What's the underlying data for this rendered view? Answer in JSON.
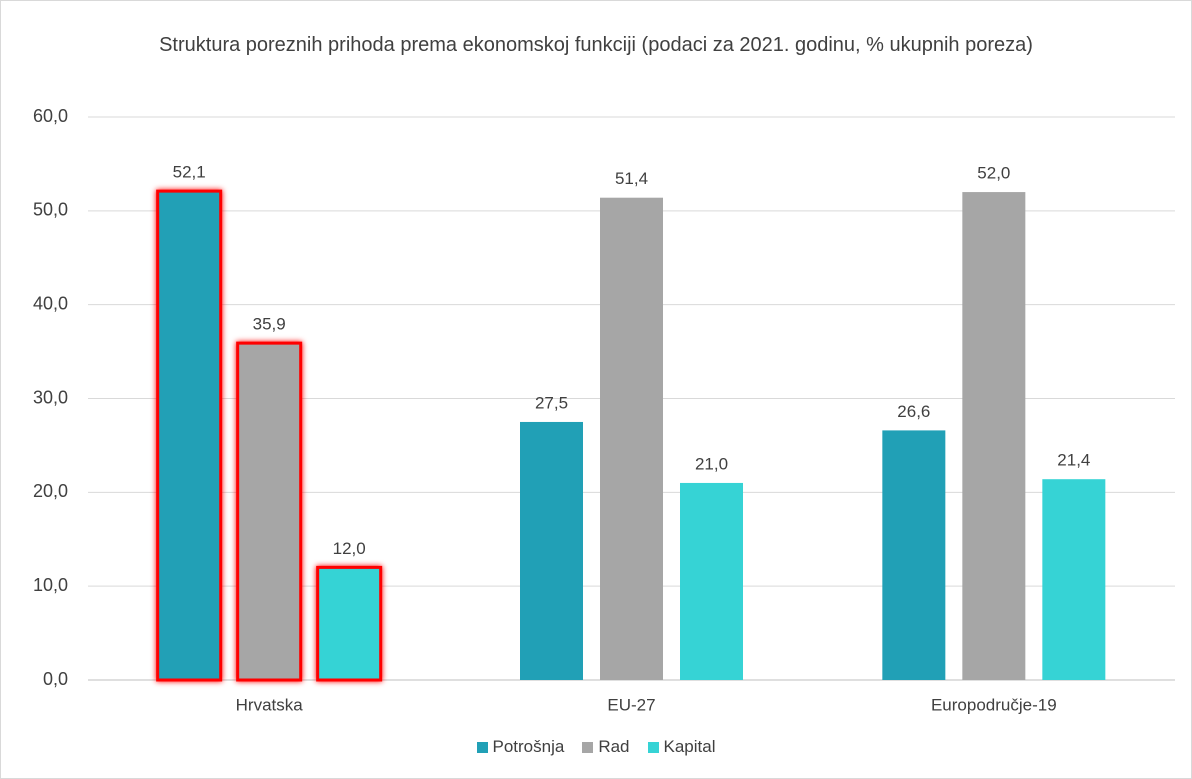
{
  "chart_data": {
    "type": "bar",
    "title": "Struktura poreznih prihoda prema ekonomskoj funkciji (podaci za 2021. godinu, % ukupnih poreza)",
    "categories": [
      "Hrvatska",
      "EU-27",
      "Europodručje-19"
    ],
    "series": [
      {
        "name": "Potrošnja",
        "color": "#21a0b6",
        "values": [
          52.1,
          27.5,
          26.6
        ],
        "value_labels": [
          "52,1",
          "27,5",
          "26,6"
        ]
      },
      {
        "name": "Rad",
        "color": "#a6a6a6",
        "values": [
          35.9,
          51.4,
          52.0
        ],
        "value_labels": [
          "35,9",
          "51,4",
          "52,0"
        ]
      },
      {
        "name": "Kapital",
        "color": "#36d3d5",
        "values": [
          12.0,
          21.0,
          21.4
        ],
        "value_labels": [
          "12,0",
          "21,0",
          "21,4"
        ]
      }
    ],
    "ylim": [
      0,
      60
    ],
    "yticks": [
      {
        "value": 0,
        "label": "0,0"
      },
      {
        "value": 10,
        "label": "10,0"
      },
      {
        "value": 20,
        "label": "20,0"
      },
      {
        "value": 30,
        "label": "30,0"
      },
      {
        "value": 40,
        "label": "40,0"
      },
      {
        "value": 50,
        "label": "50,0"
      },
      {
        "value": 60,
        "label": "60,0"
      }
    ],
    "grid": true,
    "legend": "bottom",
    "highlight": {
      "category": 0,
      "color": "#ff0000"
    }
  }
}
